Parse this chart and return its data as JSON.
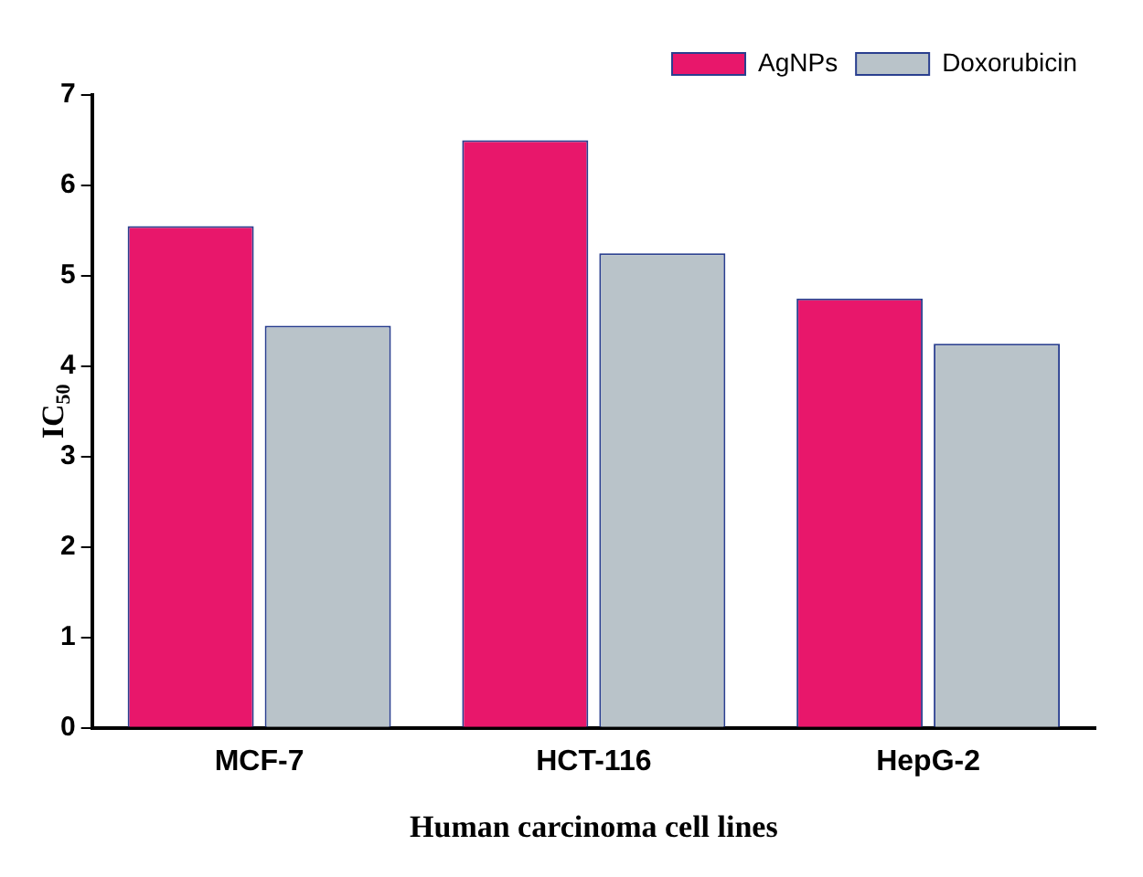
{
  "chart_data": {
    "type": "bar",
    "xlabel": "Human carcinoma cell lines",
    "ylabel": "IC$_{50}$",
    "categories": [
      "MCF-7",
      "HCT-116",
      "HepG-2"
    ],
    "series": [
      {
        "name": "AgNPs",
        "color": "#e8176b",
        "values": [
          5.55,
          6.5,
          4.75
        ]
      },
      {
        "name": "Doxorubicin",
        "color": "#b9c3c9",
        "values": [
          4.45,
          5.25,
          4.25
        ]
      }
    ],
    "ylim": [
      0,
      7
    ],
    "yticks": [
      0,
      1,
      2,
      3,
      4,
      5,
      6,
      7
    ],
    "grid": false,
    "legend": "top right"
  }
}
